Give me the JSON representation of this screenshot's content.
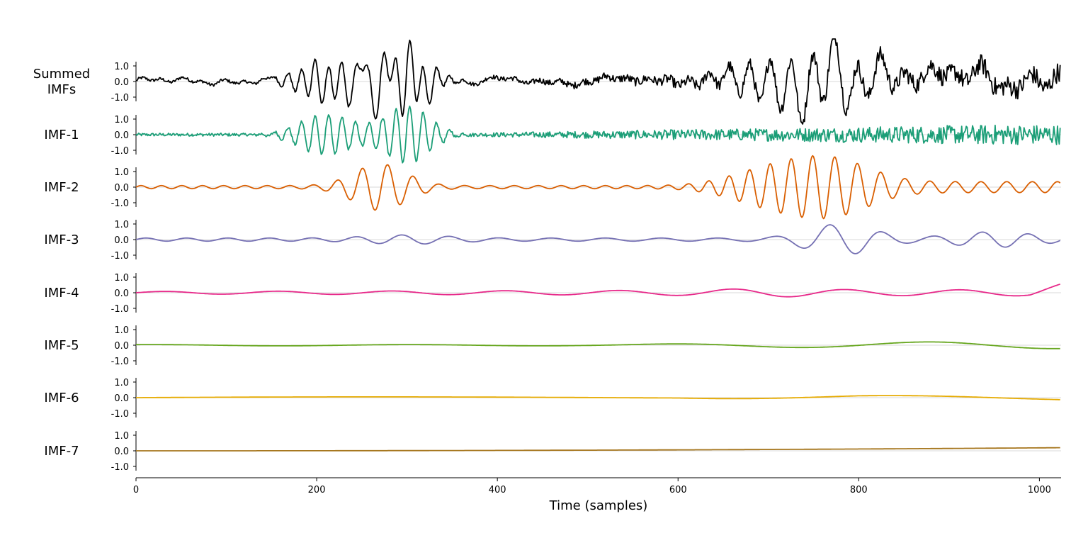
{
  "chart_data": {
    "type": "line",
    "xlabel": "Time (samples)",
    "xlim": [
      0,
      1024
    ],
    "x_ticks": [
      "0",
      "200",
      "400",
      "600",
      "800",
      "1000"
    ],
    "y_ticks": [
      "1.0",
      "0.0",
      "-1.0"
    ],
    "grid": false,
    "series": [
      {
        "name": "Summed IMFs",
        "label_lines": [
          "Summed",
          "IMFs"
        ],
        "color": "#000000"
      },
      {
        "name": "IMF-1",
        "label_lines": [
          "IMF-1"
        ],
        "color": "#1b9e77"
      },
      {
        "name": "IMF-2",
        "label_lines": [
          "IMF-2"
        ],
        "color": "#d95f02"
      },
      {
        "name": "IMF-3",
        "label_lines": [
          "IMF-3"
        ],
        "color": "#7570b3"
      },
      {
        "name": "IMF-4",
        "label_lines": [
          "IMF-4"
        ],
        "color": "#e7298a"
      },
      {
        "name": "IMF-5",
        "label_lines": [
          "IMF-5"
        ],
        "color": "#66a61e"
      },
      {
        "name": "IMF-6",
        "label_lines": [
          "IMF-6"
        ],
        "color": "#e6ab02"
      },
      {
        "name": "IMF-7",
        "label_lines": [
          "IMF-7"
        ],
        "color": "#a6761d"
      }
    ]
  }
}
